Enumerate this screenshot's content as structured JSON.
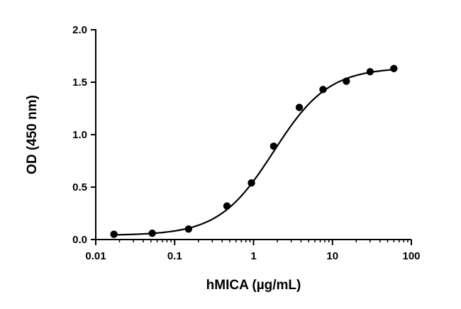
{
  "chart_data": {
    "type": "scatter",
    "xlabel": "hMICA (µg/mL)",
    "ylabel": "OD (450 nm)",
    "xscale": "log",
    "xlim": [
      0.01,
      100
    ],
    "ylim": [
      0,
      2.0
    ],
    "x_ticks": [
      "0.01",
      "0.1",
      "1",
      "10",
      "100"
    ],
    "y_ticks": [
      "0.0",
      "0.5",
      "1.0",
      "1.5",
      "2.0"
    ],
    "grid": false,
    "legend": "none",
    "fit": {
      "model": "4PL",
      "bottom": 0.04,
      "top": 1.64,
      "ec50": 1.8,
      "hill": 1.25
    },
    "series": [
      {
        "x": [
          0.017,
          0.052,
          0.15,
          0.46,
          0.94,
          1.8,
          3.8,
          7.6,
          15,
          30,
          60
        ],
        "y": [
          0.05,
          0.06,
          0.1,
          0.32,
          0.54,
          0.89,
          1.26,
          1.43,
          1.51,
          1.6,
          1.63
        ]
      }
    ]
  }
}
